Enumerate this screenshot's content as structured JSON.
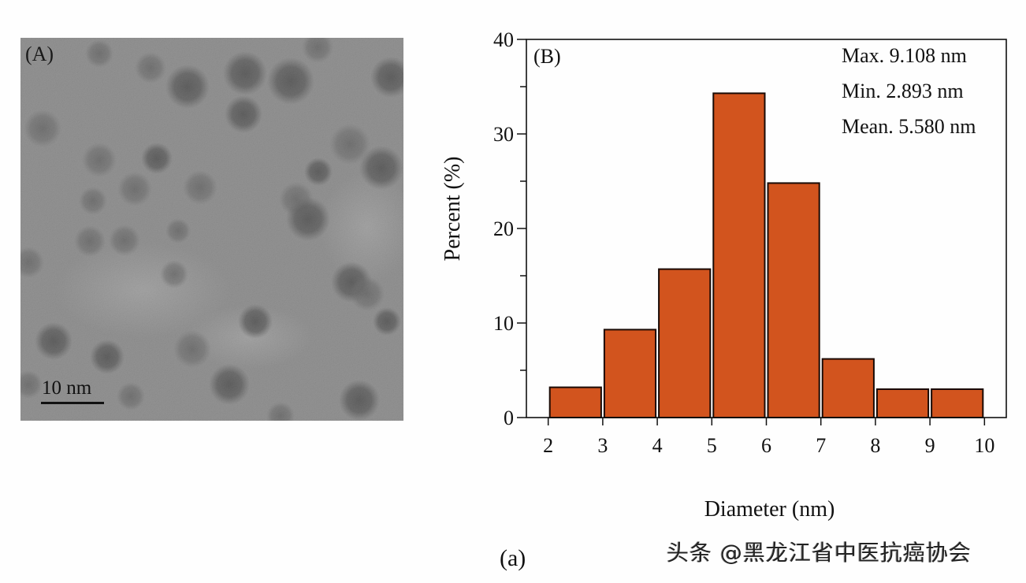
{
  "figure": {
    "panel_a_label": "(A)",
    "panel_b_label": "(B)",
    "sub_label": "(a)",
    "scale_bar_text": "10 nm",
    "watermark": "头条 @黑龙江省中医抗癌协会",
    "bar_color": "#D2541E",
    "bar_edge_color": "#1a0a05"
  },
  "stats": {
    "max": "Max. 9.108 nm",
    "min": "Min. 2.893 nm",
    "mean": "Mean. 5.580 nm"
  },
  "chart_data": {
    "type": "bar",
    "title": "",
    "xlabel": "Diameter (nm)",
    "ylabel": "Percent (%)",
    "categories": [
      "2-3",
      "3-4",
      "4-5",
      "5-6",
      "6-7",
      "7-8",
      "8-9",
      "9-10"
    ],
    "bin_edges": [
      2,
      3,
      4,
      5,
      6,
      7,
      8,
      9,
      10
    ],
    "values": [
      3.2,
      9.3,
      15.7,
      34.3,
      24.8,
      6.2,
      3.0,
      3.0
    ],
    "xlim": [
      1.6,
      10.4
    ],
    "ylim": [
      0,
      40
    ],
    "xticks": [
      2,
      3,
      4,
      5,
      6,
      7,
      8,
      9,
      10
    ],
    "yticks": [
      0,
      10,
      20,
      30,
      40
    ],
    "grid": false,
    "legend": null,
    "annotations": [
      "(B)",
      "Max. 9.108 nm",
      "Min. 2.893 nm",
      "Mean. 5.580 nm"
    ]
  }
}
